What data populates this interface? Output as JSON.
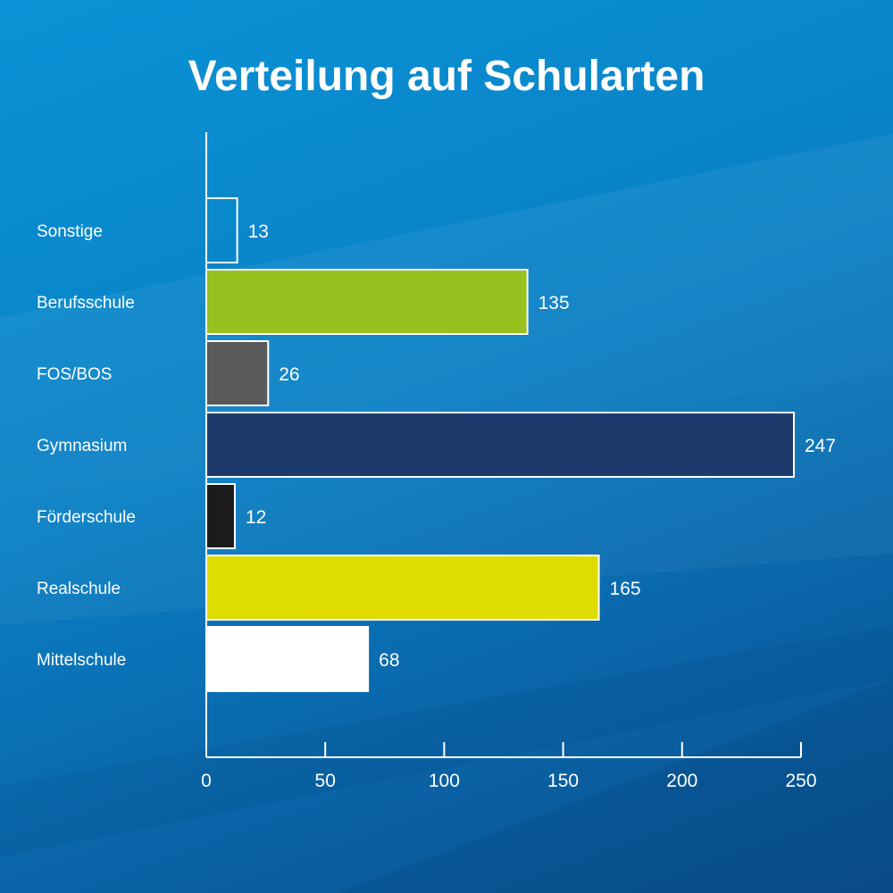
{
  "colors": {
    "sonstige": "transparent",
    "berufsschule": "#97c11f",
    "fos_bos": "#595959",
    "gymnasium": "#1d3a6c",
    "foerderschule": "#1c1c1c",
    "realschule": "#dedc00",
    "mittelschule": "#ffffff",
    "axis": "#ffffff",
    "text": "#ffffff"
  },
  "chart_data": {
    "type": "bar",
    "orientation": "horizontal",
    "title": "Verteilung auf Schularten",
    "xlabel": "",
    "ylabel": "",
    "xlim": [
      0,
      250
    ],
    "x_ticks": [
      0,
      50,
      100,
      150,
      200,
      250
    ],
    "grid": false,
    "categories": [
      "Sonstige",
      "Berufsschule",
      "FOS/BOS",
      "Gymnasium",
      "Förderschule",
      "Realschule",
      "Mittelschule"
    ],
    "values": [
      13,
      135,
      26,
      247,
      12,
      165,
      68
    ],
    "bar_colors": [
      "transparent",
      "#97c11f",
      "#595959",
      "#1d3a6c",
      "#1c1c1c",
      "#dedc00",
      "#ffffff"
    ]
  }
}
